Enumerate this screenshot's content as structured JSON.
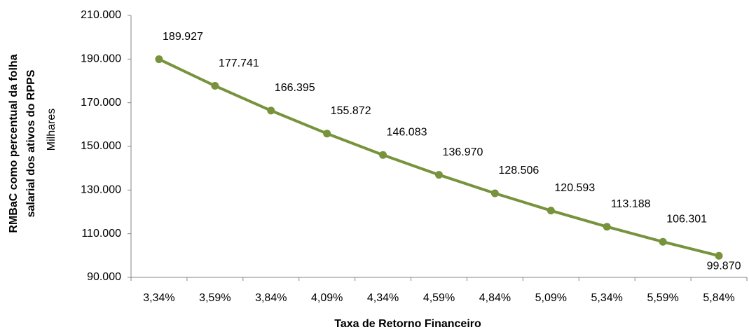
{
  "chart_data": {
    "type": "line",
    "y_axis_label": [
      "RMBaC como percentual da folha",
      "salarial dos ativos do RPPS"
    ],
    "display_units_label": "Milhares",
    "x_axis_label": "Taxa de Retorno Financeiro",
    "categories": [
      "3,34%",
      "3,59%",
      "3,84%",
      "4,09%",
      "4,34%",
      "4,59%",
      "4,84%",
      "5,09%",
      "5,34%",
      "5,59%",
      "5,84%"
    ],
    "values": [
      189927,
      177741,
      166395,
      155872,
      146083,
      136970,
      128506,
      120593,
      113188,
      106301,
      99870
    ],
    "value_labels": [
      "189.927",
      "177.741",
      "166.395",
      "155.872",
      "146.083",
      "136.970",
      "128.506",
      "120.593",
      "113.188",
      "106.301",
      "99.870"
    ],
    "color": "#77933c",
    "ylim": [
      90000,
      210000
    ],
    "yticks": [
      {
        "value": 90000,
        "label": "90.000"
      },
      {
        "value": 110000,
        "label": "110.000"
      },
      {
        "value": 130000,
        "label": "130.000"
      },
      {
        "value": 150000,
        "label": "150.000"
      },
      {
        "value": 170000,
        "label": "170.000"
      },
      {
        "value": 190000,
        "label": "190.000"
      },
      {
        "value": 210000,
        "label": "210.000"
      }
    ],
    "grid": false
  }
}
